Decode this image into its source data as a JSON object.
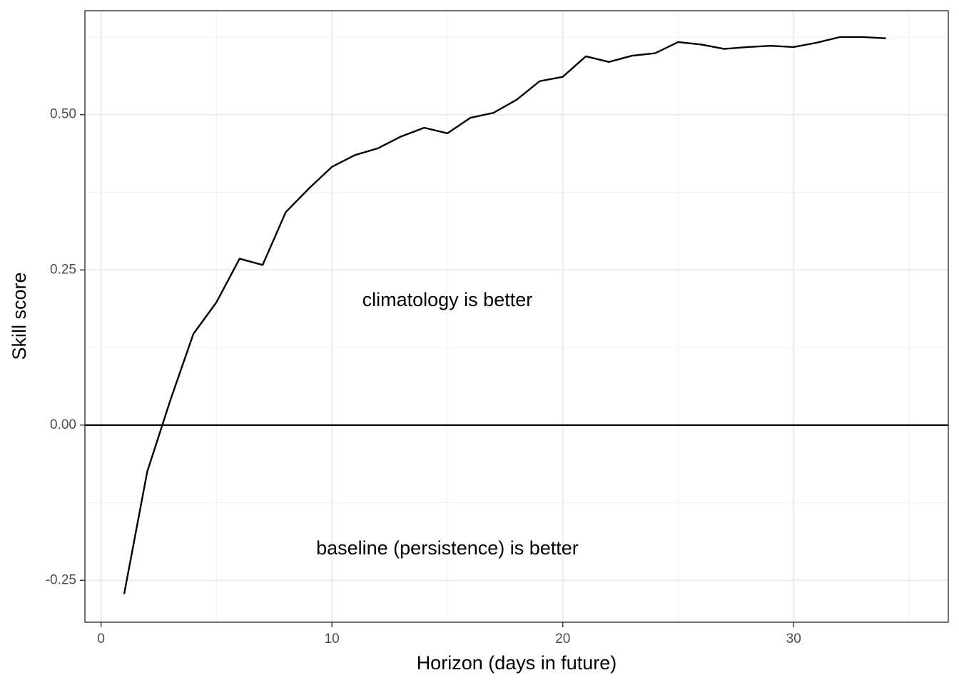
{
  "chart_data": {
    "type": "line",
    "xlabel": "Horizon (days in future)",
    "ylabel": "Skill score",
    "xlim": [
      -0.7,
      36.7
    ],
    "ylim": [
      -0.3175,
      0.6675
    ],
    "x_ticks": [
      {
        "value": 0,
        "label": "0"
      },
      {
        "value": 10,
        "label": "10"
      },
      {
        "value": 20,
        "label": "20"
      },
      {
        "value": 30,
        "label": "30"
      }
    ],
    "y_ticks": [
      {
        "value": -0.25,
        "label": "-0.25"
      },
      {
        "value": 0,
        "label": "0.00"
      },
      {
        "value": 0.25,
        "label": "0.25"
      },
      {
        "value": 0.5,
        "label": "0.50"
      }
    ],
    "grid": true,
    "reference_line": {
      "y": 0
    },
    "annotations": [
      {
        "text": "climatology is better",
        "x": 15,
        "y": 0.2
      },
      {
        "text": "baseline (persistence) is better",
        "x": 15,
        "y": -0.2
      }
    ],
    "series": [
      {
        "x": [
          1,
          2,
          3,
          4,
          5,
          6,
          7,
          8,
          9,
          10,
          11,
          12,
          13,
          14,
          15,
          16,
          17,
          18,
          19,
          20,
          21,
          22,
          23,
          24,
          25,
          26,
          27,
          28,
          29,
          30,
          31,
          32,
          33,
          34
        ],
        "values": [
          -0.272,
          -0.075,
          0.04,
          0.147,
          0.198,
          0.268,
          0.258,
          0.343,
          0.381,
          0.416,
          0.435,
          0.446,
          0.465,
          0.479,
          0.47,
          0.495,
          0.503,
          0.524,
          0.554,
          0.561,
          0.594,
          0.585,
          0.595,
          0.599,
          0.617,
          0.613,
          0.606,
          0.609,
          0.611,
          0.609,
          0.616,
          0.625,
          0.625,
          0.623
        ]
      }
    ]
  }
}
